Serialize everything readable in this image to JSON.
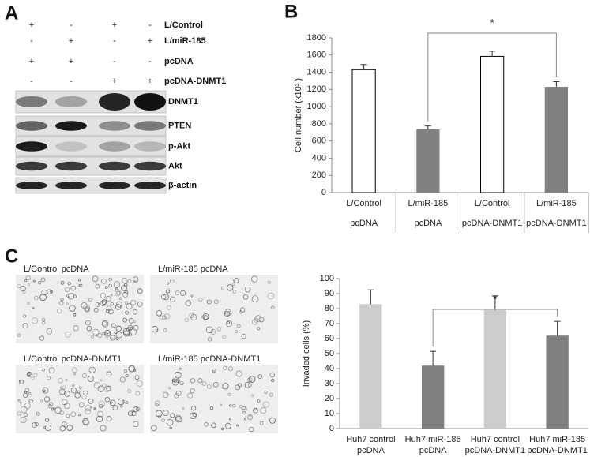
{
  "panel_a": {
    "letter": "A",
    "conditions": [
      {
        "label": "L/Control",
        "marks": [
          "+",
          "-",
          "+",
          "-"
        ]
      },
      {
        "label": "L/miR-185",
        "marks": [
          "-",
          "+",
          "-",
          "+"
        ]
      },
      {
        "label": "pcDNA",
        "marks": [
          "+",
          "+",
          "-",
          "-"
        ]
      },
      {
        "label": "pcDNA-DNMT1",
        "marks": [
          "-",
          "-",
          "+",
          "+"
        ]
      }
    ],
    "blots": [
      "DNMT1",
      "PTEN",
      "p-Akt",
      "Akt",
      "β-actin"
    ]
  },
  "panel_b": {
    "letter": "B"
  },
  "panel_c": {
    "letter": "C",
    "images": [
      "L/Control  pcDNA",
      "L/miR-185  pcDNA",
      "L/Control  pcDNA-DNMT1",
      "L/miR-185  pcDNA-DNMT1"
    ]
  },
  "chart_data": [
    {
      "type": "bar",
      "y_label": "Cell number (x10³ )",
      "categories": [
        [
          "L/Control",
          "pcDNA"
        ],
        [
          "L/miR-185",
          "pcDNA"
        ],
        [
          "L/Control",
          "pcDNA-DNMT1"
        ],
        [
          "L/miR-185",
          "pcDNA-DNMT1"
        ]
      ],
      "values": [
        1430,
        735,
        1585,
        1230
      ],
      "errors": [
        60,
        40,
        60,
        60
      ],
      "colors": [
        "#ffffff",
        "#808080",
        "#ffffff",
        "#808080"
      ],
      "ylim": [
        0,
        1800
      ],
      "yticks": [
        0,
        200,
        400,
        600,
        800,
        1000,
        1200,
        1400,
        1600,
        1800
      ],
      "annotation": "*"
    },
    {
      "type": "bar",
      "y_label": "Invaded cells (%)",
      "categories": [
        [
          "Huh7 control",
          "pcDNA"
        ],
        [
          "Huh7 miR-185",
          "pcDNA"
        ],
        [
          "Huh7 control",
          "pcDNA-DNMT1"
        ],
        [
          "Huh7 miR-185",
          "pcDNA-DNMT1"
        ]
      ],
      "values": [
        83,
        42,
        79,
        62
      ],
      "errors": [
        9.5,
        9.5,
        9.5,
        9.5
      ],
      "colors": [
        "#cccccc",
        "#808080",
        "#cccccc",
        "#808080"
      ],
      "ylim": [
        0,
        100
      ],
      "yticks": [
        0,
        10,
        20,
        30,
        40,
        50,
        60,
        70,
        80,
        90,
        100
      ],
      "annotation": "*"
    }
  ]
}
